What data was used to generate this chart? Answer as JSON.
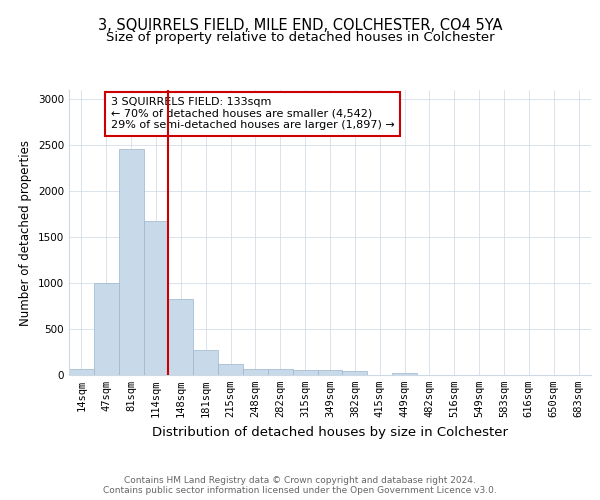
{
  "title": "3, SQUIRRELS FIELD, MILE END, COLCHESTER, CO4 5YA",
  "subtitle": "Size of property relative to detached houses in Colchester",
  "xlabel": "Distribution of detached houses by size in Colchester",
  "ylabel": "Number of detached properties",
  "categories": [
    "14sqm",
    "47sqm",
    "81sqm",
    "114sqm",
    "148sqm",
    "181sqm",
    "215sqm",
    "248sqm",
    "282sqm",
    "315sqm",
    "349sqm",
    "382sqm",
    "415sqm",
    "449sqm",
    "482sqm",
    "516sqm",
    "549sqm",
    "583sqm",
    "616sqm",
    "650sqm",
    "683sqm"
  ],
  "values": [
    60,
    1000,
    2460,
    1670,
    830,
    270,
    120,
    60,
    60,
    50,
    50,
    40,
    0,
    25,
    0,
    0,
    0,
    0,
    0,
    0,
    0
  ],
  "bar_color": "#c8daea",
  "bar_edge_color": "#9bb5cc",
  "vline_color": "#cc0000",
  "annotation_text": "3 SQUIRRELS FIELD: 133sqm\n← 70% of detached houses are smaller (4,542)\n29% of semi-detached houses are larger (1,897) →",
  "annotation_box_color": "#ffffff",
  "annotation_box_edge_color": "#cc0000",
  "ylim": [
    0,
    3100
  ],
  "yticks": [
    0,
    500,
    1000,
    1500,
    2000,
    2500,
    3000
  ],
  "footer_text": "Contains HM Land Registry data © Crown copyright and database right 2024.\nContains public sector information licensed under the Open Government Licence v3.0.",
  "title_fontsize": 10.5,
  "subtitle_fontsize": 9.5,
  "xlabel_fontsize": 9.5,
  "ylabel_fontsize": 8.5,
  "tick_fontsize": 7.5,
  "annotation_fontsize": 8,
  "footer_fontsize": 6.5
}
